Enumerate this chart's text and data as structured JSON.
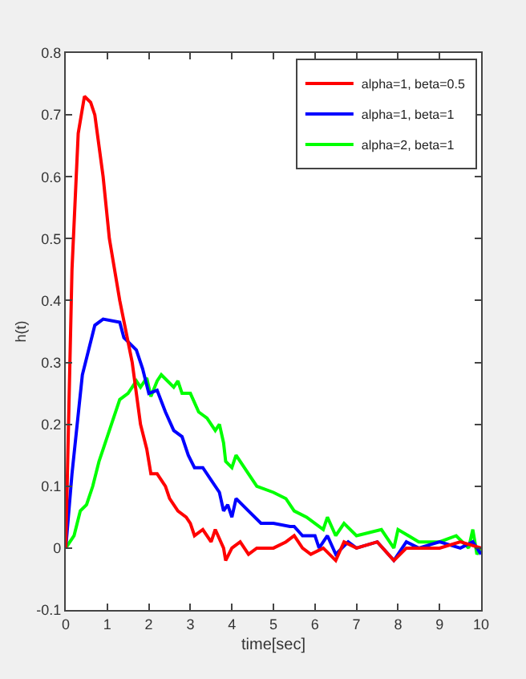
{
  "chart_data": {
    "type": "line",
    "xlabel": "time[sec]",
    "ylabel": "h(t)",
    "xlim": [
      0,
      10
    ],
    "xticks": [
      0,
      1,
      2,
      3,
      4,
      5,
      6,
      7,
      8,
      9,
      10
    ],
    "ylim": [
      -0.1,
      0.8
    ],
    "yticks": [
      -0.1,
      0,
      0.1,
      0.2,
      0.3,
      0.4,
      0.5,
      0.6,
      0.7,
      0.8
    ],
    "grid": false,
    "legend": "top right",
    "line_style": "solid",
    "marker": "none",
    "series": [
      {
        "name": "alpha=1, beta=0.5",
        "color": "#ff0000",
        "x": [
          0,
          0.15,
          0.3,
          0.45,
          0.6,
          0.7,
          0.9,
          1.05,
          1.3,
          1.6,
          1.8,
          1.95,
          2.05,
          2.2,
          2.4,
          2.5,
          2.7,
          2.9,
          3.0,
          3.1,
          3.3,
          3.5,
          3.6,
          3.8,
          3.85,
          4.0,
          4.2,
          4.4,
          4.6,
          5.0,
          5.3,
          5.5,
          5.7,
          5.9,
          6.2,
          6.5,
          6.7,
          7.0,
          7.5,
          7.9,
          8.2,
          9.0,
          9.5,
          10
        ],
        "values": [
          0,
          0.45,
          0.67,
          0.73,
          0.72,
          0.7,
          0.6,
          0.5,
          0.4,
          0.3,
          0.2,
          0.16,
          0.12,
          0.12,
          0.1,
          0.08,
          0.06,
          0.05,
          0.04,
          0.02,
          0.03,
          0.01,
          0.03,
          0.0,
          -0.02,
          0.0,
          0.01,
          -0.01,
          0.0,
          0.0,
          0.01,
          0.02,
          0.0,
          -0.01,
          0.0,
          -0.02,
          0.01,
          0.0,
          0.01,
          -0.02,
          0.0,
          0.0,
          0.01,
          0.0
        ]
      },
      {
        "name": "alpha=1, beta=1",
        "color": "#0000ff",
        "x": [
          0,
          0.15,
          0.4,
          0.7,
          0.9,
          1.3,
          1.4,
          1.7,
          1.85,
          2.0,
          2.2,
          2.4,
          2.6,
          2.8,
          2.95,
          3.1,
          3.3,
          3.5,
          3.7,
          3.8,
          3.9,
          4.0,
          4.1,
          4.4,
          4.7,
          5.0,
          5.4,
          5.5,
          5.7,
          6.0,
          6.1,
          6.3,
          6.5,
          6.8,
          7.0,
          7.5,
          7.9,
          8.2,
          8.5,
          9.0,
          9.5,
          9.8,
          10
        ],
        "values": [
          0,
          0.12,
          0.28,
          0.36,
          0.37,
          0.365,
          0.34,
          0.32,
          0.29,
          0.25,
          0.255,
          0.22,
          0.19,
          0.18,
          0.15,
          0.13,
          0.13,
          0.11,
          0.09,
          0.06,
          0.07,
          0.05,
          0.08,
          0.06,
          0.04,
          0.04,
          0.035,
          0.035,
          0.02,
          0.02,
          0.0,
          0.02,
          -0.01,
          0.01,
          0.0,
          0.01,
          -0.02,
          0.01,
          0.0,
          0.01,
          0.0,
          0.01,
          -0.01
        ]
      },
      {
        "name": "alpha=2, beta=1",
        "color": "#00ff00",
        "x": [
          0,
          0.2,
          0.35,
          0.5,
          0.65,
          0.8,
          0.9,
          1.1,
          1.3,
          1.5,
          1.7,
          1.8,
          1.95,
          2.05,
          2.2,
          2.3,
          2.6,
          2.7,
          2.8,
          3.0,
          3.2,
          3.4,
          3.6,
          3.7,
          3.8,
          3.85,
          4.0,
          4.1,
          4.4,
          4.6,
          5.0,
          5.3,
          5.5,
          5.8,
          6.0,
          6.2,
          6.3,
          6.5,
          6.7,
          7.0,
          7.6,
          7.9,
          8.0,
          8.5,
          9.0,
          9.4,
          9.7,
          9.8,
          9.9,
          10
        ],
        "values": [
          0,
          0.02,
          0.06,
          0.07,
          0.1,
          0.14,
          0.16,
          0.2,
          0.24,
          0.25,
          0.27,
          0.26,
          0.275,
          0.245,
          0.27,
          0.28,
          0.26,
          0.27,
          0.25,
          0.25,
          0.22,
          0.21,
          0.19,
          0.2,
          0.17,
          0.14,
          0.13,
          0.15,
          0.12,
          0.1,
          0.09,
          0.08,
          0.06,
          0.05,
          0.04,
          0.03,
          0.05,
          0.02,
          0.04,
          0.02,
          0.03,
          0.0,
          0.03,
          0.01,
          0.01,
          0.02,
          0.0,
          0.03,
          -0.01,
          0.0
        ]
      }
    ]
  }
}
